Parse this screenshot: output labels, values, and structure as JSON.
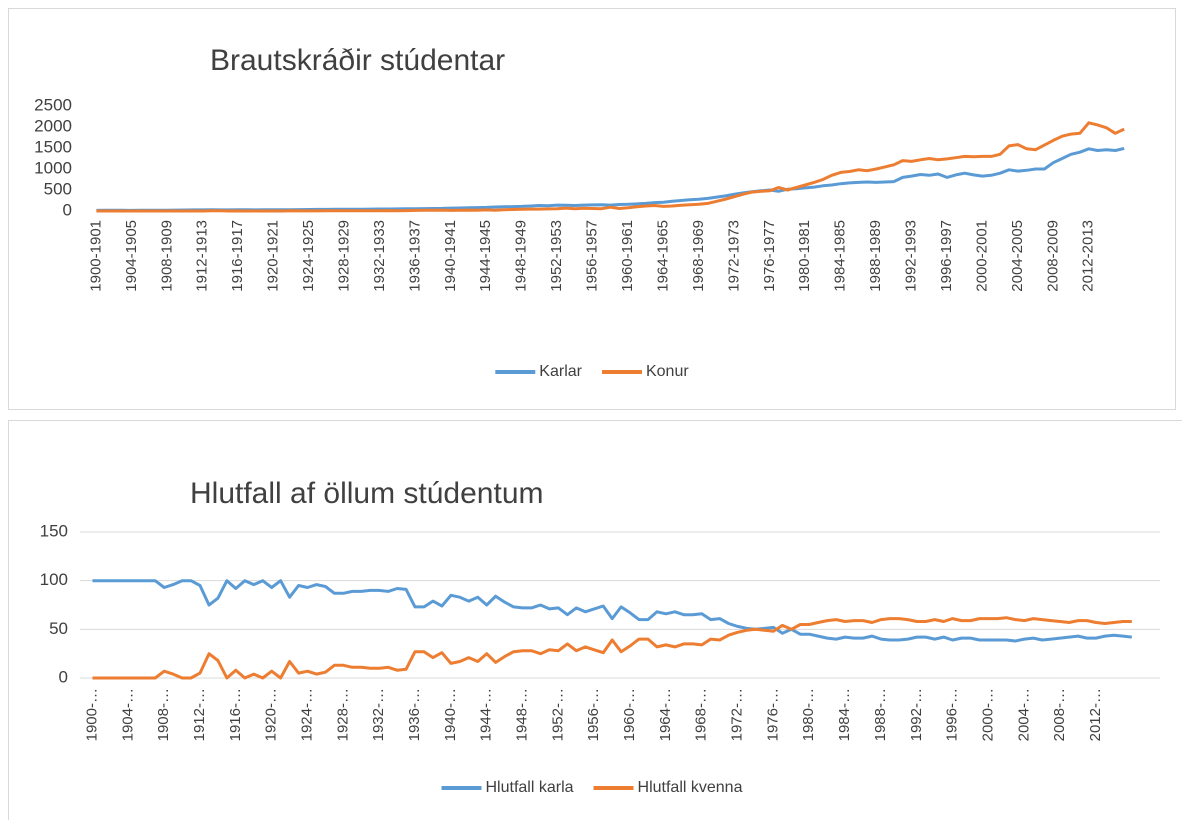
{
  "chart_data": [
    {
      "type": "line",
      "title": "Brautskráðir stúdentar",
      "categories": [
        "1900-1901",
        null,
        null,
        null,
        "1904-1905",
        null,
        null,
        null,
        "1908-1909",
        null,
        null,
        null,
        "1912-1913",
        null,
        null,
        null,
        "1916-1917",
        null,
        null,
        null,
        "1920-1921",
        null,
        null,
        null,
        "1924-1925",
        null,
        null,
        null,
        "1928-1929",
        null,
        null,
        null,
        "1932-1933",
        null,
        null,
        null,
        "1936-1937",
        null,
        null,
        null,
        "1940-1941",
        null,
        null,
        null,
        "1944-1945",
        null,
        null,
        null,
        "1948-1949",
        null,
        null,
        null,
        "1952-1953",
        null,
        null,
        null,
        "1956-1957",
        null,
        null,
        null,
        "1960-1961",
        null,
        null,
        null,
        "1964-1965",
        null,
        null,
        null,
        "1968-1969",
        null,
        null,
        null,
        "1972-1973",
        null,
        null,
        null,
        "1976-1977",
        null,
        null,
        null,
        "1980-1981",
        null,
        null,
        null,
        "1984-1985",
        null,
        null,
        null,
        "1988-1989",
        null,
        null,
        null,
        "1992-1993",
        null,
        null,
        null,
        "1996-1997",
        null,
        null,
        null,
        "2000-2001",
        null,
        null,
        null,
        "2004-2005",
        null,
        null,
        null,
        "2008-2009",
        null,
        null,
        null,
        "2012-2013",
        null,
        null,
        null,
        null
      ],
      "series": [
        {
          "name": "Karlar",
          "color": "#5b9bd5",
          "values": [
            15,
            16,
            17,
            16,
            15,
            18,
            17,
            19,
            20,
            22,
            24,
            25,
            26,
            28,
            25,
            27,
            30,
            28,
            27,
            29,
            28,
            30,
            32,
            33,
            35,
            37,
            38,
            40,
            42,
            43,
            44,
            45,
            47,
            48,
            50,
            52,
            55,
            58,
            60,
            62,
            70,
            72,
            75,
            80,
            85,
            95,
            100,
            105,
            110,
            120,
            130,
            125,
            140,
            135,
            130,
            140,
            145,
            150,
            140,
            155,
            160,
            170,
            180,
            200,
            210,
            230,
            250,
            270,
            280,
            300,
            330,
            360,
            400,
            430,
            460,
            480,
            500,
            470,
            520,
            530,
            550,
            570,
            600,
            620,
            650,
            670,
            680,
            690,
            680,
            690,
            700,
            800,
            830,
            870,
            850,
            880,
            800,
            860,
            900,
            860,
            830,
            850,
            900,
            980,
            950,
            970,
            1000,
            1000,
            1150,
            1250,
            1350,
            1400,
            1480,
            1440,
            1460,
            1440,
            1490
          ]
        },
        {
          "name": "Konur",
          "color": "#ed7d31",
          "values": [
            0,
            0,
            0,
            0,
            0,
            0,
            0,
            0,
            1,
            1,
            0,
            0,
            1,
            8,
            5,
            0,
            2,
            0,
            1,
            0,
            2,
            0,
            7,
            2,
            3,
            3,
            4,
            5,
            6,
            7,
            7,
            8,
            8,
            9,
            8,
            9,
            15,
            20,
            18,
            22,
            15,
            18,
            22,
            20,
            25,
            20,
            30,
            35,
            40,
            45,
            45,
            50,
            55,
            70,
            55,
            65,
            60,
            55,
            90,
            60,
            75,
            100,
            120,
            130,
            110,
            120,
            135,
            150,
            160,
            180,
            230,
            280,
            340,
            400,
            450,
            470,
            480,
            560,
            500,
            560,
            620,
            680,
            750,
            850,
            920,
            940,
            980,
            960,
            1000,
            1050,
            1100,
            1200,
            1180,
            1220,
            1250,
            1220,
            1240,
            1270,
            1300,
            1290,
            1300,
            1300,
            1350,
            1550,
            1580,
            1480,
            1460,
            1570,
            1680,
            1780,
            1830,
            1850,
            2100,
            2050,
            1980,
            1850,
            1950
          ]
        }
      ],
      "ylim": [
        0,
        2500
      ],
      "yticks": [
        0,
        500,
        1000,
        1500,
        2000,
        2500
      ],
      "grid": false,
      "legend": "bottom"
    },
    {
      "type": "line",
      "title": "Hlutfall af öllum stúdentum",
      "categories": [
        "1900-…",
        null,
        null,
        null,
        "1904-…",
        null,
        null,
        null,
        "1908-…",
        null,
        null,
        null,
        "1912-…",
        null,
        null,
        null,
        "1916-…",
        null,
        null,
        null,
        "1920-…",
        null,
        null,
        null,
        "1924-…",
        null,
        null,
        null,
        "1928-…",
        null,
        null,
        null,
        "1932-…",
        null,
        null,
        null,
        "1936-…",
        null,
        null,
        null,
        "1940-…",
        null,
        null,
        null,
        "1944-…",
        null,
        null,
        null,
        "1948-…",
        null,
        null,
        null,
        "1952-…",
        null,
        null,
        null,
        "1956-…",
        null,
        null,
        null,
        "1960-…",
        null,
        null,
        null,
        "1964-…",
        null,
        null,
        null,
        "1968-…",
        null,
        null,
        null,
        "1972-…",
        null,
        null,
        null,
        "1976-…",
        null,
        null,
        null,
        "1980-…",
        null,
        null,
        null,
        "1984-…",
        null,
        null,
        null,
        "1988-…",
        null,
        null,
        null,
        "1992-…",
        null,
        null,
        null,
        "1996-…",
        null,
        null,
        null,
        "2000-…",
        null,
        null,
        null,
        "2004-…",
        null,
        null,
        null,
        "2008-…",
        null,
        null,
        null,
        "2012-…",
        null,
        null,
        null,
        null
      ],
      "series": [
        {
          "name": "Hlutfall karla",
          "color": "#5b9bd5",
          "values": [
            100,
            100,
            100,
            100,
            100,
            100,
            100,
            100,
            93,
            96,
            100,
            100,
            95,
            75,
            82,
            100,
            92,
            100,
            96,
            100,
            93,
            100,
            83,
            95,
            93,
            96,
            94,
            87,
            87,
            89,
            89,
            90,
            90,
            89,
            92,
            91,
            73,
            73,
            79,
            74,
            85,
            83,
            79,
            83,
            75,
            84,
            78,
            73,
            72,
            72,
            75,
            71,
            72,
            65,
            72,
            68,
            71,
            74,
            61,
            73,
            67,
            60,
            60,
            68,
            66,
            68,
            65,
            65,
            66,
            60,
            61,
            56,
            53,
            51,
            50,
            51,
            52,
            46,
            50,
            45,
            45,
            43,
            41,
            40,
            42,
            41,
            41,
            43,
            40,
            39,
            39,
            40,
            42,
            42,
            40,
            42,
            39,
            41,
            41,
            39,
            39,
            39,
            39,
            38,
            40,
            41,
            39,
            40,
            41,
            42,
            43,
            41,
            41,
            43,
            44,
            43,
            42
          ]
        },
        {
          "name": "Hlutfall kvenna",
          "color": "#ed7d31",
          "values": [
            0,
            0,
            0,
            0,
            0,
            0,
            0,
            0,
            7,
            4,
            0,
            0,
            5,
            25,
            18,
            0,
            8,
            0,
            4,
            0,
            7,
            0,
            17,
            5,
            7,
            4,
            6,
            13,
            13,
            11,
            11,
            10,
            10,
            11,
            8,
            9,
            27,
            27,
            21,
            26,
            15,
            17,
            21,
            17,
            25,
            16,
            22,
            27,
            28,
            28,
            25,
            29,
            28,
            35,
            28,
            32,
            29,
            26,
            39,
            27,
            33,
            40,
            40,
            32,
            34,
            32,
            35,
            35,
            34,
            40,
            39,
            44,
            47,
            49,
            50,
            49,
            48,
            54,
            50,
            55,
            55,
            57,
            59,
            60,
            58,
            59,
            59,
            57,
            60,
            61,
            61,
            60,
            58,
            58,
            60,
            58,
            61,
            59,
            59,
            61,
            61,
            61,
            62,
            60,
            59,
            61,
            60,
            59,
            58,
            57,
            59,
            59,
            57,
            56,
            57,
            58,
            58
          ]
        }
      ],
      "ylim": [
        0,
        150
      ],
      "yticks": [
        0,
        50,
        100,
        150
      ],
      "grid": true,
      "legend": "bottom"
    }
  ]
}
